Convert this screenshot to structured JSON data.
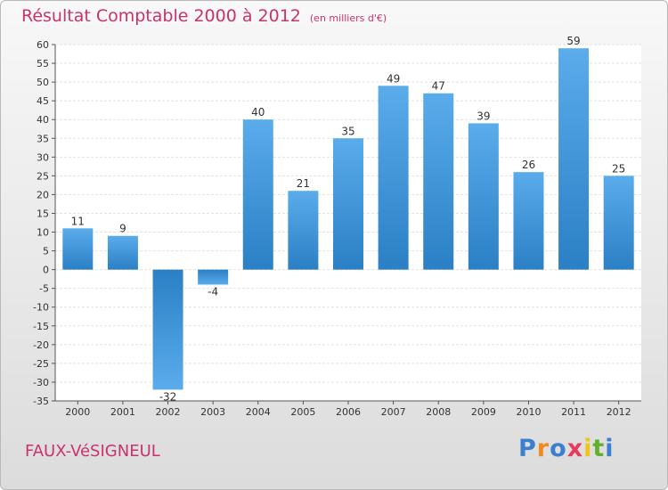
{
  "chart_data": {
    "type": "bar",
    "title": "Résultat Comptable 2000 à 2012",
    "subtitle": "(en milliers d'€)",
    "categories": [
      "2000",
      "2001",
      "2002",
      "2003",
      "2004",
      "2005",
      "2006",
      "2007",
      "2008",
      "2009",
      "2010",
      "2011",
      "2012"
    ],
    "values": [
      11,
      9,
      -32,
      -4,
      40,
      21,
      35,
      49,
      47,
      39,
      26,
      59,
      25
    ],
    "ylim": [
      -35,
      60
    ],
    "yticks": [
      60,
      55,
      50,
      45,
      40,
      35,
      30,
      25,
      20,
      15,
      10,
      5,
      0,
      -5,
      -10,
      -15,
      -20,
      -25,
      -30,
      -35
    ],
    "grid": true,
    "colors": {
      "bar_light": "#5aaceb",
      "bar_dark": "#2b7fc4",
      "title": "#c9336c"
    }
  },
  "footer": {
    "town": "FAUX-VéSIGNEUL",
    "logo": "Proxiti",
    "logo_colors": [
      "#3a7fd0",
      "#f08a1c",
      "#3a7fd0",
      "#e83a5c",
      "#f0c419",
      "#60b030",
      "#3a7fd0"
    ]
  }
}
